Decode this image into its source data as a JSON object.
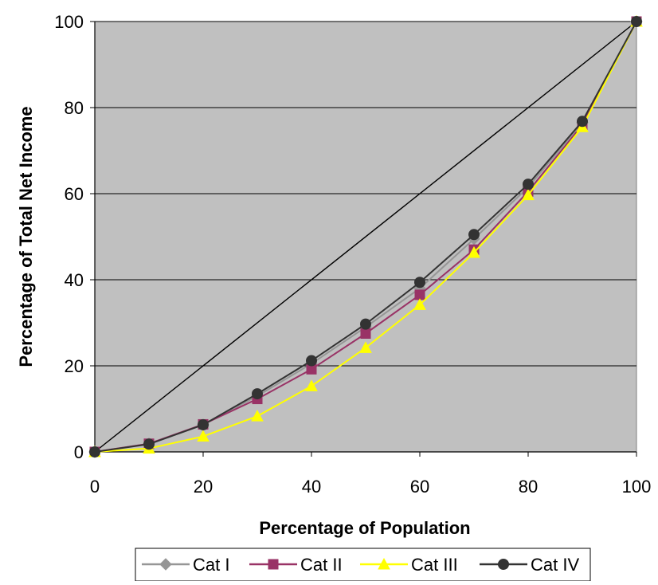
{
  "chart_data": {
    "type": "line",
    "title": "",
    "xlabel": "Percentage of Population",
    "ylabel": "Percentage of Total Net Income",
    "xlim": [
      0,
      100
    ],
    "ylim": [
      0,
      100
    ],
    "x_ticks": [
      0,
      20,
      40,
      60,
      80,
      100
    ],
    "y_ticks": [
      0,
      20,
      40,
      60,
      80,
      100
    ],
    "grid": "horizontal",
    "plot_background": "#c0c0c0",
    "legend_position": "bottom",
    "x": [
      0,
      10,
      20,
      30,
      40,
      50,
      60,
      70,
      80,
      90,
      100
    ],
    "reference_line": {
      "x": [
        0,
        100
      ],
      "y": [
        0,
        100
      ],
      "color": "#000000"
    },
    "series": [
      {
        "name": "Cat I",
        "color": "#969696",
        "marker": "diamond",
        "values": [
          0,
          1.9,
          6.3,
          13.0,
          20.5,
          29.0,
          38.0,
          49.5,
          61.5,
          76.5,
          100
        ]
      },
      {
        "name": "Cat II",
        "color": "#993366",
        "marker": "square",
        "values": [
          0,
          1.9,
          6.4,
          12.3,
          19.2,
          27.5,
          36.5,
          47.0,
          60.5,
          76.0,
          100
        ]
      },
      {
        "name": "Cat III",
        "color": "#ffff00",
        "marker": "triangle",
        "values": [
          0,
          0.8,
          3.6,
          8.3,
          15.3,
          24.2,
          34.2,
          46.3,
          59.7,
          75.5,
          100
        ]
      },
      {
        "name": "Cat IV",
        "color": "#333333",
        "marker": "circle",
        "values": [
          0,
          1.8,
          6.3,
          13.5,
          21.2,
          29.7,
          39.4,
          50.5,
          62.2,
          76.8,
          100
        ]
      }
    ]
  }
}
